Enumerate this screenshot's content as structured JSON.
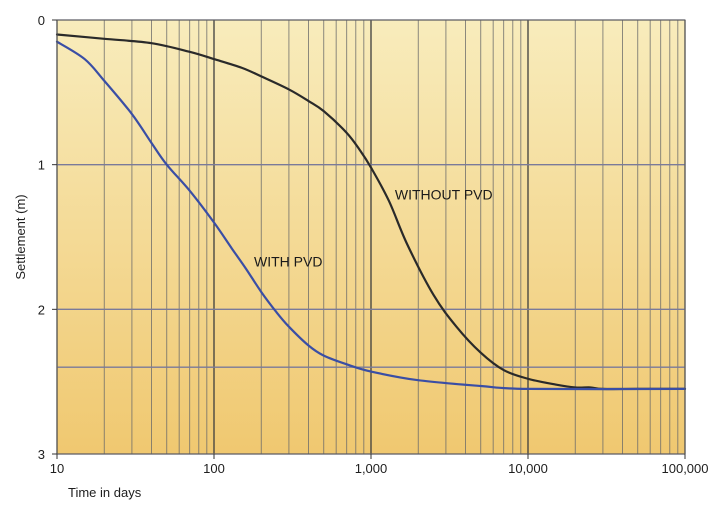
{
  "chart_data": {
    "type": "line",
    "xlabel": "Time in days",
    "ylabel": "Settlement (m)",
    "x_scale": "log",
    "xlim": [
      10,
      100000
    ],
    "ylim": [
      3,
      0
    ],
    "y_inverted": true,
    "x_ticks": [
      10,
      100,
      1000,
      10000,
      100000
    ],
    "x_tick_labels": [
      "10",
      "100",
      "1,000",
      "10,000",
      "100,000"
    ],
    "y_ticks": [
      0,
      1,
      2,
      3
    ],
    "y_tick_labels": [
      "0",
      "1",
      "2",
      "3"
    ],
    "grid": true,
    "background": [
      "#f8ecbc",
      "#f0c870"
    ],
    "series": [
      {
        "name": "WITHOUT PVD",
        "color": "#2a2a2a",
        "x": [
          10,
          20,
          40,
          70,
          100,
          150,
          200,
          300,
          400,
          500,
          700,
          850,
          1000,
          1300,
          1700,
          2500,
          3500,
          5000,
          7000,
          10000,
          15000,
          20000,
          25000,
          30000,
          50000,
          100000
        ],
        "y": [
          0.1,
          0.13,
          0.16,
          0.22,
          0.27,
          0.33,
          0.39,
          0.48,
          0.56,
          0.63,
          0.78,
          0.9,
          1.02,
          1.25,
          1.55,
          1.9,
          2.12,
          2.3,
          2.42,
          2.48,
          2.52,
          2.54,
          2.54,
          2.55,
          2.55,
          2.55
        ]
      },
      {
        "name": "WITH PVD",
        "color": "#3a4ea5",
        "x": [
          10,
          15,
          20,
          30,
          40,
          50,
          70,
          100,
          130,
          160,
          200,
          250,
          300,
          400,
          500,
          700,
          1000,
          2000,
          5000,
          10000,
          100000
        ],
        "y": [
          0.15,
          0.27,
          0.42,
          0.65,
          0.85,
          1.0,
          1.18,
          1.4,
          1.58,
          1.72,
          1.88,
          2.02,
          2.12,
          2.25,
          2.32,
          2.38,
          2.43,
          2.49,
          2.53,
          2.55,
          2.55
        ]
      }
    ],
    "annotations": [
      {
        "text": "WITHOUT PVD",
        "series": "WITHOUT PVD",
        "x": 1300,
        "y": 1.2
      },
      {
        "text": "WITH PVD",
        "series": "WITH PVD",
        "x": 160,
        "y": 1.65
      }
    ]
  }
}
